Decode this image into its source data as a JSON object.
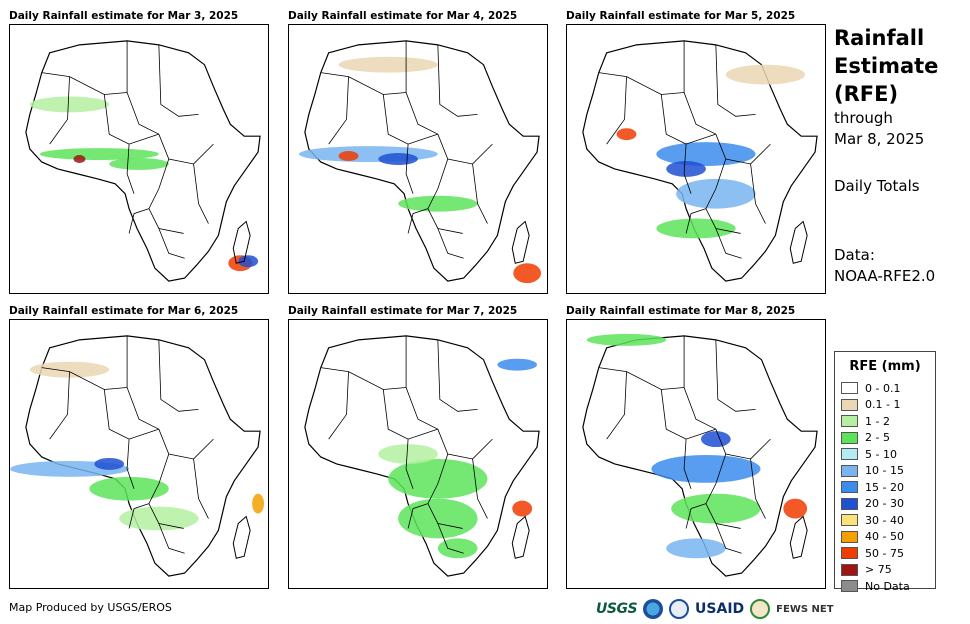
{
  "maps": [
    {
      "title": "Daily Rainfall estimate for Mar 3, 2025"
    },
    {
      "title": "Daily Rainfall estimate for Mar 4, 2025"
    },
    {
      "title": "Daily Rainfall estimate for Mar 5, 2025"
    },
    {
      "title": "Daily Rainfall estimate for Mar 6, 2025"
    },
    {
      "title": "Daily Rainfall estimate for Mar 7, 2025"
    },
    {
      "title": "Daily Rainfall estimate for Mar 8, 2025"
    }
  ],
  "side": {
    "title_lines": [
      "Rainfall",
      "Estimate",
      "(RFE)"
    ],
    "through_label": "through",
    "through_date": "Mar 8, 2025",
    "totals": "Daily Totals",
    "data_label": "Data:",
    "data_source": "NOAA-RFE2.0"
  },
  "legend": {
    "title": "RFE (mm)",
    "items": [
      {
        "label": "0 - 0.1",
        "color": "#ffffff"
      },
      {
        "label": "0.1 - 1",
        "color": "#ead7b3"
      },
      {
        "label": "1 - 2",
        "color": "#b4f0a0"
      },
      {
        "label": "2 - 5",
        "color": "#5de35a"
      },
      {
        "label": "5 - 10",
        "color": "#b4ecf5"
      },
      {
        "label": "10 - 15",
        "color": "#78b4f0"
      },
      {
        "label": "15 - 20",
        "color": "#3c8ced"
      },
      {
        "label": "20 - 30",
        "color": "#1e50d2"
      },
      {
        "label": "30 - 40",
        "color": "#fae178"
      },
      {
        "label": "40 - 50",
        "color": "#f5a000"
      },
      {
        "label": "50 - 75",
        "color": "#f03c00"
      },
      {
        "label": "> 75",
        "color": "#a01414"
      },
      {
        "label": "No Data",
        "color": "#8c8c8c"
      }
    ]
  },
  "footer": {
    "credit": "Map Produced by USGS/EROS",
    "logos": [
      "USGS",
      "NOAA",
      "USDA",
      "USAID",
      "FEWS NET"
    ]
  }
}
